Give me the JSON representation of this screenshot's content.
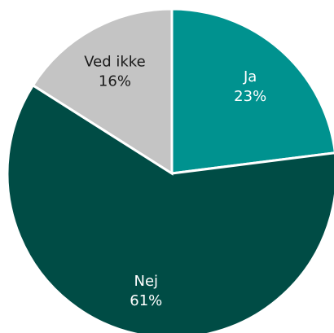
{
  "chart_data": {
    "type": "pie",
    "title": "",
    "start_angle_deg": 0,
    "direction": "clockwise",
    "slices": [
      {
        "label": "Ja",
        "value": 23,
        "value_label": "23%",
        "color": "#00928f",
        "text_color": "#ffffff"
      },
      {
        "label": "Nej",
        "value": 61,
        "value_label": "61%",
        "color": "#004c45",
        "text_color": "#ffffff"
      },
      {
        "label": "Ved ikke",
        "value": 16,
        "value_label": "16%",
        "color": "#c4c4c4",
        "text_color": "#1a1a1a"
      }
    ]
  }
}
